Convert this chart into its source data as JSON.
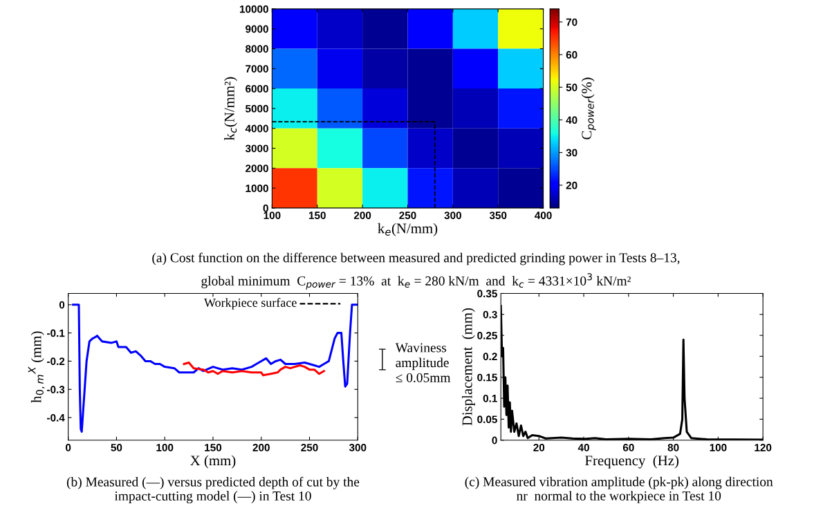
{
  "chart_data": [
    {
      "type": "heatmap",
      "xlabel": "k$_{e}$(N/mm)",
      "ylabel": "k$_{c}$(N/mm²)",
      "clabel": "C$_{power}$(%)",
      "cells": [
        [
          20,
          17,
          14,
          20,
          33,
          52
        ],
        [
          27,
          19,
          15,
          14,
          20,
          33
        ],
        [
          35,
          26,
          18,
          14,
          16,
          22
        ],
        [
          50,
          36,
          25,
          17,
          14,
          16
        ],
        [
          65,
          50,
          35,
          22,
          16,
          14
        ]
      ],
      "xlim": [
        100,
        400
      ],
      "xticks": [
        100,
        150,
        200,
        250,
        300,
        350,
        400
      ],
      "ylim": [
        0,
        10000
      ],
      "yticks": [
        0,
        1000,
        2000,
        3000,
        4000,
        5000,
        6000,
        7000,
        8000,
        9000,
        10000
      ],
      "clim": [
        13,
        74
      ],
      "cticks": [
        20,
        30,
        40,
        50,
        60,
        70
      ],
      "ref_lines": [
        {
          "axis": "x",
          "value": 280,
          "color": "#000000",
          "line_style": "dashed"
        },
        {
          "axis": "y",
          "value": 4331,
          "color": "#000000",
          "line_style": "dashed"
        }
      ],
      "annotations": [
        "(a) Cost function on the difference between measured and predicted grinding power in Tests 8–13,",
        "global minimum  C$_{power}$ = 13%  at  k$_{e}$ = 280 kN/m  and  k$_{c}$ = 4331×10$^{3}$ kN/m²"
      ]
    },
    {
      "type": "line",
      "xlabel": "X (mm)",
      "ylabel": "h$_{0,m}$$^{X}$ (mm)",
      "xlim": [
        0,
        300
      ],
      "xticks": [
        0,
        50,
        100,
        150,
        200,
        250,
        300
      ],
      "ylim": [
        -0.48,
        0.04
      ],
      "yticks": [
        -0.4,
        -0.3,
        -0.2,
        -0.1,
        0
      ],
      "grid": false,
      "legend": false,
      "series": [
        {
          "color": "#0000ff",
          "x": [
            5,
            11,
            12,
            13,
            14,
            16,
            19,
            22,
            25,
            28,
            30,
            35,
            45,
            50,
            52,
            60,
            65,
            70,
            75,
            80,
            85,
            90,
            95,
            100,
            110,
            115,
            120,
            130,
            135,
            140,
            150,
            160,
            170,
            180,
            190,
            195,
            205,
            210,
            215,
            220,
            225,
            235,
            245,
            255,
            260,
            265,
            270,
            273,
            276,
            279,
            283,
            285,
            287,
            289,
            292,
            294,
            300
          ],
          "values": [
            0,
            0,
            -0.3,
            -0.44,
            -0.45,
            -0.35,
            -0.2,
            -0.13,
            -0.12,
            -0.115,
            -0.11,
            -0.13,
            -0.135,
            -0.13,
            -0.15,
            -0.15,
            -0.17,
            -0.165,
            -0.18,
            -0.2,
            -0.2,
            -0.21,
            -0.21,
            -0.22,
            -0.225,
            -0.24,
            -0.24,
            -0.24,
            -0.225,
            -0.235,
            -0.22,
            -0.23,
            -0.225,
            -0.23,
            -0.22,
            -0.21,
            -0.19,
            -0.21,
            -0.2,
            -0.195,
            -0.21,
            -0.21,
            -0.205,
            -0.215,
            -0.22,
            -0.21,
            -0.2,
            -0.16,
            -0.12,
            -0.1,
            -0.1,
            -0.2,
            -0.29,
            -0.28,
            -0.1,
            0,
            0
          ]
        },
        {
          "color": "#ff0000",
          "x": [
            120,
            125,
            130,
            140,
            145,
            150,
            155,
            160,
            170,
            180,
            190,
            200,
            202,
            210,
            217,
            220,
            225,
            230,
            240,
            245,
            250,
            255,
            260,
            265
          ],
          "values": [
            -0.21,
            -0.205,
            -0.225,
            -0.23,
            -0.24,
            -0.235,
            -0.245,
            -0.235,
            -0.24,
            -0.235,
            -0.24,
            -0.24,
            -0.25,
            -0.245,
            -0.24,
            -0.23,
            -0.22,
            -0.225,
            -0.215,
            -0.22,
            -0.23,
            -0.23,
            -0.245,
            -0.235
          ]
        }
      ],
      "annotations": [
        "Workpiece surface",
        "Waviness\namplitude\n≤ 0.05mm",
        "(b) Measured (—) versus predicted depth of cut by the\nimpact-cutting model (—) in Test 10"
      ]
    },
    {
      "type": "line",
      "xlabel": "Frequency  (Hz)",
      "ylabel": "Displacement  (mm)",
      "xlim": [
        3,
        120
      ],
      "xticks": [
        20,
        40,
        60,
        80,
        100,
        120
      ],
      "ylim": [
        0,
        0.35
      ],
      "yticks": [
        0,
        0.05,
        0.1,
        0.15,
        0.2,
        0.25,
        0.3,
        0.35
      ],
      "grid": false,
      "legend": false,
      "series": [
        {
          "color": "#000000",
          "x": [
            3,
            3.5,
            4,
            4.5,
            5,
            5.5,
            6,
            6.5,
            7,
            7.5,
            8,
            9,
            10,
            11,
            12,
            13,
            14,
            15,
            17,
            20,
            23,
            30,
            35,
            40,
            45,
            50,
            60,
            70,
            76,
            80,
            83,
            84,
            84.5,
            85,
            86,
            88,
            95,
            120
          ],
          "values": [
            0.32,
            0.2,
            0.22,
            0.08,
            0.15,
            0.06,
            0.13,
            0.03,
            0.09,
            0.02,
            0.07,
            0.02,
            0.04,
            0.01,
            0.035,
            0.01,
            0.02,
            0.005,
            0.012,
            0.01,
            0.004,
            0.006,
            0.004,
            0.003,
            0.005,
            0.002,
            0.003,
            0.002,
            0.005,
            0.006,
            0.015,
            0.05,
            0.24,
            0.1,
            0.02,
            0.005,
            0.002,
            0.001
          ]
        }
      ],
      "annotations": [
        "(c) Measured vibration amplitude (pk-pk) along direction\nnr  normal to the workpiece in Test 10"
      ]
    }
  ]
}
